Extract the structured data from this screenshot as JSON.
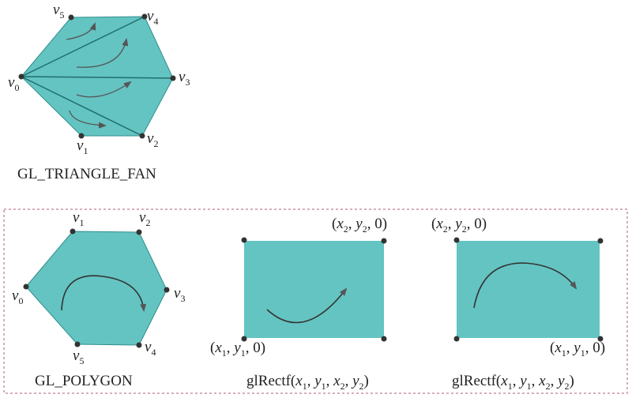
{
  "colors": {
    "fill": "#64c4c2",
    "edge": "#2f8e8c",
    "stroke": "#1f6f6c",
    "vertex": "#333333",
    "arrow": "#555555",
    "frame": "#b05a78"
  },
  "fan": {
    "caption": "GL_TRIANGLE_FAN",
    "vertices": [
      {
        "name": "v",
        "index": "0"
      },
      {
        "name": "v",
        "index": "1"
      },
      {
        "name": "v",
        "index": "2"
      },
      {
        "name": "v",
        "index": "3"
      },
      {
        "name": "v",
        "index": "4"
      },
      {
        "name": "v",
        "index": "5"
      }
    ]
  },
  "polygon": {
    "caption": "GL_POLYGON",
    "vertices": [
      {
        "name": "v",
        "index": "0"
      },
      {
        "name": "v",
        "index": "1"
      },
      {
        "name": "v",
        "index": "2"
      },
      {
        "name": "v",
        "index": "3"
      },
      {
        "name": "v",
        "index": "4"
      },
      {
        "name": "v",
        "index": "5"
      }
    ]
  },
  "rect1": {
    "caption_func": "glRectf(",
    "caption_args": [
      "x",
      "1",
      ", ",
      "y",
      "1",
      ", ",
      "x",
      "2",
      ", ",
      "y",
      "2",
      ")"
    ],
    "top_right": [
      "(",
      "x",
      "2",
      ", ",
      "y",
      "2",
      ", 0)"
    ],
    "bottom_left": [
      "(",
      "x",
      "1",
      ", ",
      "y",
      "1",
      ", 0)"
    ]
  },
  "rect2": {
    "caption_func": "glRectf(",
    "caption_args": [
      "x",
      "1",
      ", ",
      "y",
      "1",
      ", ",
      "x",
      "2",
      ", ",
      "y",
      "2",
      ")"
    ],
    "top_left": [
      "(",
      "x",
      "2",
      ", ",
      "y",
      "2",
      ", 0)"
    ],
    "bottom_right": [
      "(",
      "x",
      "1",
      ", ",
      "y",
      "1",
      ", 0)"
    ]
  }
}
